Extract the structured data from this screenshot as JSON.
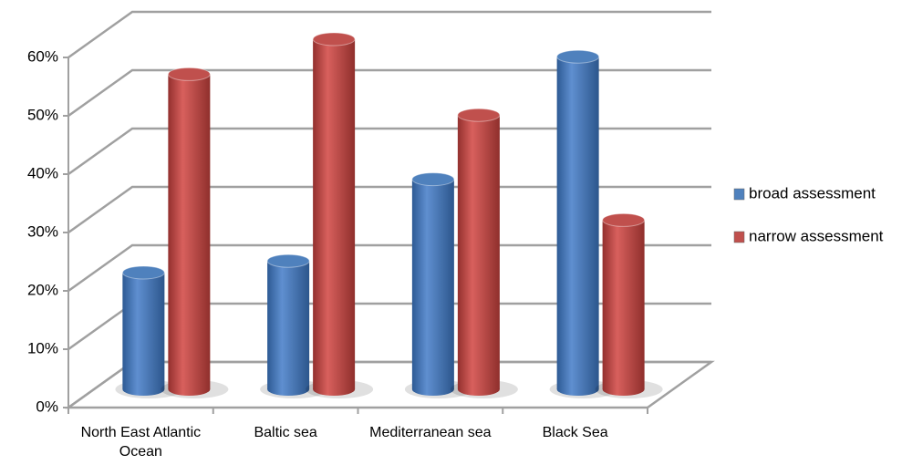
{
  "chart_data": {
    "type": "bar3d",
    "categories": [
      "North East Atlantic Ocean",
      "Baltic sea",
      "Mediterranean sea",
      "Black Sea"
    ],
    "series": [
      {
        "name": "broad assessment",
        "color": "#4f81bd",
        "values": [
          20,
          22,
          36,
          57
        ]
      },
      {
        "name": "narrow assessment",
        "color": "#c0504d",
        "values": [
          54,
          60,
          47,
          29
        ]
      }
    ],
    "ylim": [
      0,
      60
    ],
    "yticks": [
      {
        "value": 0,
        "label": "0%"
      },
      {
        "value": 10,
        "label": "10%"
      },
      {
        "value": 20,
        "label": "20%"
      },
      {
        "value": 30,
        "label": "30%"
      },
      {
        "value": 40,
        "label": "40%"
      },
      {
        "value": 50,
        "label": "50%"
      },
      {
        "value": 60,
        "label": "60%"
      }
    ],
    "grid": true,
    "legend": "right"
  }
}
